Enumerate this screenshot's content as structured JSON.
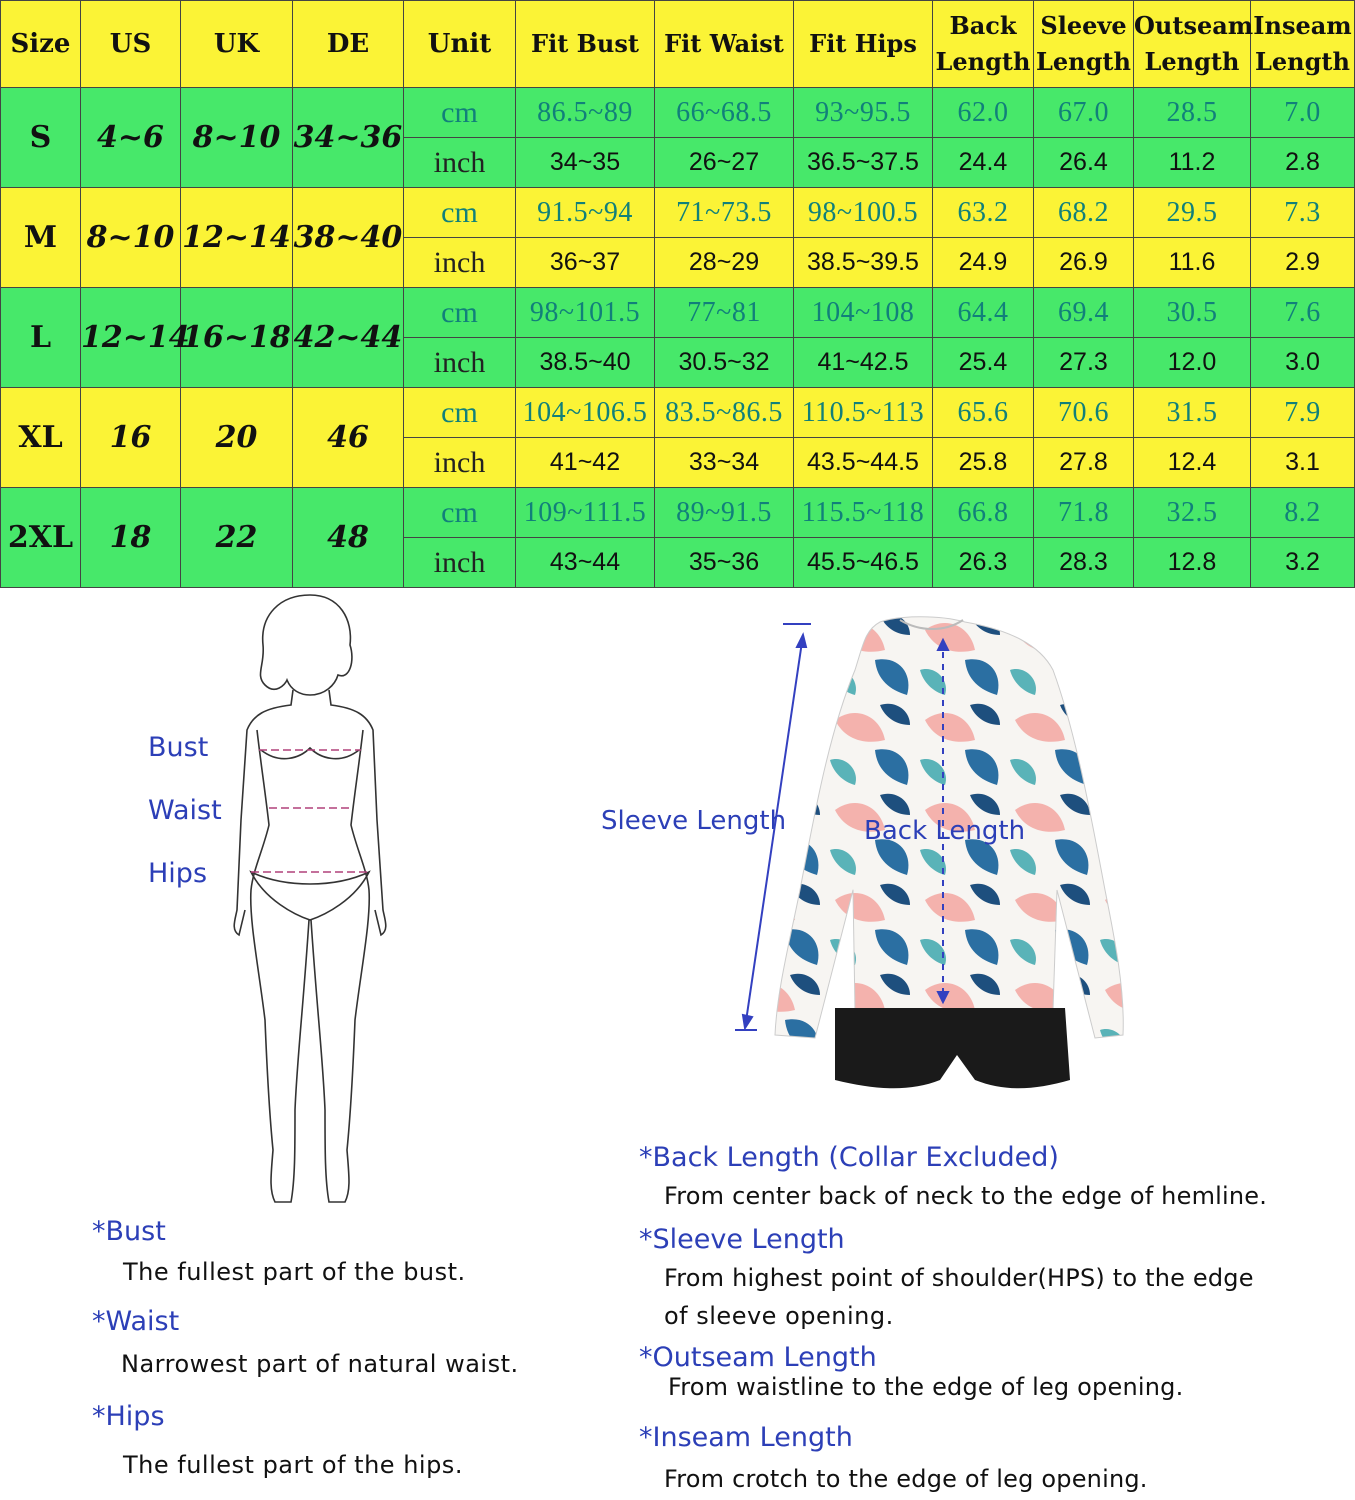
{
  "headers": {
    "size": "Size",
    "us": "US",
    "uk": "UK",
    "de": "DE",
    "unit": "Unit",
    "fit_bust": "Fit Bust",
    "fit_waist": "Fit Waist",
    "fit_hips": "Fit Hips",
    "back_l1": "Back",
    "back_l2": "Length",
    "sleeve_l1": "Sleeve",
    "sleeve_l2": "Length",
    "outseam_l1": "Outseam",
    "outseam_l2": "Length",
    "inseam_l1": "Inseam",
    "inseam_l2": "Length"
  },
  "rows": [
    {
      "size": "S",
      "us": "4~6",
      "uk": "8~10",
      "de": "34~36",
      "cm": {
        "unit": "cm",
        "values": [
          "86.5~89",
          "66~68.5",
          "93~95.5",
          "62.0",
          "67.0",
          "28.5",
          "7.0"
        ]
      },
      "inch": {
        "unit": "inch",
        "values": [
          "34~35",
          "26~27",
          "36.5~37.5",
          "24.4",
          "26.4",
          "11.2",
          "2.8"
        ]
      }
    },
    {
      "size": "M",
      "us": "8~10",
      "uk": "12~14",
      "de": "38~40",
      "cm": {
        "unit": "cm",
        "values": [
          "91.5~94",
          "71~73.5",
          "98~100.5",
          "63.2",
          "68.2",
          "29.5",
          "7.3"
        ]
      },
      "inch": {
        "unit": "inch",
        "values": [
          "36~37",
          "28~29",
          "38.5~39.5",
          "24.9",
          "26.9",
          "11.6",
          "2.9"
        ]
      }
    },
    {
      "size": "L",
      "us": "12~14",
      "uk": "16~18",
      "de": "42~44",
      "cm": {
        "unit": "cm",
        "values": [
          "98~101.5",
          "77~81",
          "104~108",
          "64.4",
          "69.4",
          "30.5",
          "7.6"
        ]
      },
      "inch": {
        "unit": "inch",
        "values": [
          "38.5~40",
          "30.5~32",
          "41~42.5",
          "25.4",
          "27.3",
          "12.0",
          "3.0"
        ]
      }
    },
    {
      "size": "XL",
      "us": "16",
      "uk": "20",
      "de": "46",
      "cm": {
        "unit": "cm",
        "values": [
          "104~106.5",
          "83.5~86.5",
          "110.5~113",
          "65.6",
          "70.6",
          "31.5",
          "7.9"
        ]
      },
      "inch": {
        "unit": "inch",
        "values": [
          "41~42",
          "33~34",
          "43.5~44.5",
          "25.8",
          "27.8",
          "12.4",
          "3.1"
        ]
      }
    },
    {
      "size": "2XL",
      "us": "18",
      "uk": "22",
      "de": "48",
      "cm": {
        "unit": "cm",
        "values": [
          "109~111.5",
          "89~91.5",
          "115.5~118",
          "66.8",
          "71.8",
          "32.5",
          "8.2"
        ]
      },
      "inch": {
        "unit": "inch",
        "values": [
          "43~44",
          "35~36",
          "45.5~46.5",
          "26.3",
          "28.3",
          "12.8",
          "3.2"
        ]
      }
    }
  ],
  "figure_labels": {
    "bust": "Bust",
    "waist": "Waist",
    "hips": "Hips",
    "sleeve_length": "Sleeve Length",
    "back_length": "Back Length"
  },
  "definitions_body": {
    "bust_title": "*Bust",
    "bust_text": "The fullest part of the bust.",
    "waist_title": "*Waist",
    "waist_text": "Narrowest part of natural waist.",
    "hips_title": "*Hips",
    "hips_text": "The fullest part of the hips."
  },
  "definitions_garment": {
    "back_title": "*Back Length (Collar Excluded)",
    "back_text": "From center back of neck to the edge of hemline.",
    "sleeve_title": "*Sleeve Length",
    "sleeve_text_1": "From highest point of shoulder(HPS) to the edge",
    "sleeve_text_2": "of sleeve opening.",
    "outseam_title": "*Outseam Length",
    "outseam_text": "From waistline to the edge of leg opening.",
    "inseam_title": "*Inseam Length",
    "inseam_text": "From crotch to the edge of leg opening."
  },
  "colors": {
    "header_yellow": "#fbf336",
    "row_green": "#47e86a",
    "cm_teal": "#11807a",
    "label_blue": "#2c3fb7"
  }
}
